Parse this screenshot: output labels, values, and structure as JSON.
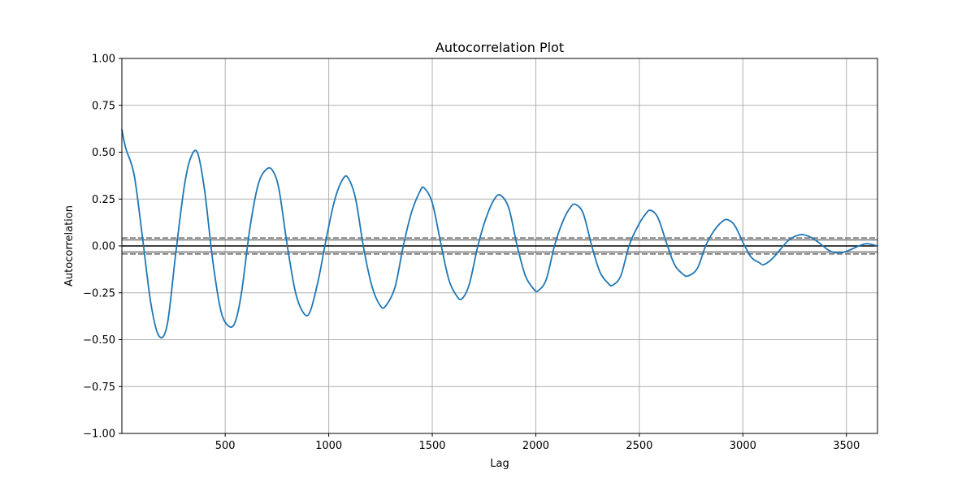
{
  "chart_data": {
    "type": "line",
    "title": "Autocorrelation Plot",
    "xlabel": "Lag",
    "ylabel": "Autocorrelation",
    "xlim": [
      1,
      3650
    ],
    "ylim": [
      -1.0,
      1.0
    ],
    "x_ticks": [
      500,
      1000,
      1500,
      2000,
      2500,
      3000,
      3500
    ],
    "x_tick_labels": [
      "500",
      "1000",
      "1500",
      "2000",
      "2500",
      "3000",
      "3500"
    ],
    "y_ticks": [
      -1.0,
      -0.75,
      -0.5,
      -0.25,
      0.0,
      0.25,
      0.5,
      0.75,
      1.0
    ],
    "y_tick_labels": [
      "−1.00",
      "−0.75",
      "−0.50",
      "−0.25",
      "0.00",
      "0.25",
      "0.50",
      "0.75",
      "1.00"
    ],
    "grid": true,
    "reference_lines": {
      "zero": 0.0,
      "confidence_95": [
        0.0324,
        -0.0324
      ],
      "confidence_99": [
        0.0427,
        -0.0427
      ]
    },
    "series": [
      {
        "color": "#1f77b4",
        "x": [
          1,
          20,
          60,
          100,
          140,
          180,
          220,
          260,
          300,
          330,
          365,
          400,
          440,
          480,
          520,
          550,
          580,
          620,
          660,
          700,
          730,
          760,
          800,
          840,
          880,
          910,
          950,
          990,
          1030,
          1070,
          1095,
          1130,
          1170,
          1210,
          1250,
          1275,
          1320,
          1360,
          1400,
          1440,
          1460,
          1500,
          1540,
          1580,
          1620,
          1645,
          1680,
          1720,
          1760,
          1800,
          1830,
          1870,
          1910,
          1950,
          1990,
          2010,
          2050,
          2090,
          2130,
          2170,
          2195,
          2230,
          2270,
          2310,
          2350,
          2370,
          2410,
          2450,
          2490,
          2530,
          2555,
          2590,
          2630,
          2670,
          2710,
          2735,
          2780,
          2820,
          2860,
          2900,
          2925,
          2960,
          3000,
          3040,
          3080,
          3100,
          3140,
          3180,
          3220,
          3260,
          3290,
          3330,
          3370,
          3410,
          3440,
          3480,
          3520,
          3560,
          3600,
          3650
        ],
        "y": [
          0.62,
          0.52,
          0.38,
          0.05,
          -0.3,
          -0.48,
          -0.42,
          -0.05,
          0.3,
          0.46,
          0.5,
          0.3,
          -0.08,
          -0.35,
          -0.43,
          -0.4,
          -0.24,
          0.1,
          0.33,
          0.41,
          0.4,
          0.3,
          0.0,
          -0.25,
          -0.36,
          -0.35,
          -0.18,
          0.05,
          0.25,
          0.36,
          0.36,
          0.25,
          -0.02,
          -0.22,
          -0.32,
          -0.32,
          -0.22,
          0.0,
          0.18,
          0.29,
          0.31,
          0.23,
          0.02,
          -0.18,
          -0.27,
          -0.28,
          -0.2,
          0.0,
          0.15,
          0.25,
          0.27,
          0.2,
          0.0,
          -0.16,
          -0.23,
          -0.24,
          -0.18,
          0.0,
          0.13,
          0.21,
          0.22,
          0.17,
          0.0,
          -0.14,
          -0.2,
          -0.21,
          -0.16,
          0.0,
          0.1,
          0.17,
          0.19,
          0.15,
          0.02,
          -0.1,
          -0.15,
          -0.16,
          -0.12,
          0.0,
          0.08,
          0.13,
          0.14,
          0.11,
          0.02,
          -0.06,
          -0.09,
          -0.1,
          -0.07,
          -0.02,
          0.03,
          0.055,
          0.06,
          0.045,
          0.015,
          -0.02,
          -0.035,
          -0.035,
          -0.02,
          0.0,
          0.012,
          0.0
        ]
      }
    ]
  }
}
